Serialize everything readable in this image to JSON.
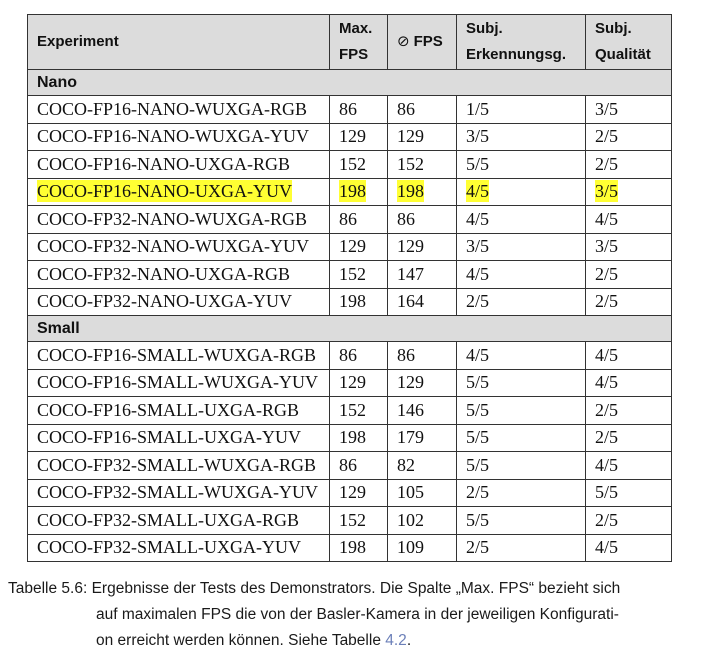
{
  "table": {
    "headers": {
      "experiment": "Experiment",
      "max_fps": [
        "Max.",
        "FPS"
      ],
      "avg_fps_symbol": "⊘",
      "avg_fps": "FPS",
      "subj_detect": [
        "Subj.",
        "Erkennungsg."
      ],
      "subj_quality": [
        "Subj.",
        "Qualität"
      ]
    },
    "groups": [
      {
        "label": "Nano",
        "rows": [
          {
            "experiment": "COCO-FP16-NANO-WUXGA-RGB",
            "max_fps": "86",
            "avg_fps": "86",
            "detect": "1/5",
            "quality": "3/5",
            "highlight": false
          },
          {
            "experiment": "COCO-FP16-NANO-WUXGA-YUV",
            "max_fps": "129",
            "avg_fps": "129",
            "detect": "3/5",
            "quality": "2/5",
            "highlight": false
          },
          {
            "experiment": "COCO-FP16-NANO-UXGA-RGB",
            "max_fps": "152",
            "avg_fps": "152",
            "detect": "5/5",
            "quality": "2/5",
            "highlight": false
          },
          {
            "experiment": "COCO-FP16-NANO-UXGA-YUV",
            "max_fps": "198",
            "avg_fps": "198",
            "detect": "4/5",
            "quality": "3/5",
            "highlight": true
          },
          {
            "experiment": "COCO-FP32-NANO-WUXGA-RGB",
            "max_fps": "86",
            "avg_fps": "86",
            "detect": "4/5",
            "quality": "4/5",
            "highlight": false
          },
          {
            "experiment": "COCO-FP32-NANO-WUXGA-YUV",
            "max_fps": "129",
            "avg_fps": "129",
            "detect": "3/5",
            "quality": "3/5",
            "highlight": false
          },
          {
            "experiment": "COCO-FP32-NANO-UXGA-RGB",
            "max_fps": "152",
            "avg_fps": "147",
            "detect": "4/5",
            "quality": "2/5",
            "highlight": false
          },
          {
            "experiment": "COCO-FP32-NANO-UXGA-YUV",
            "max_fps": "198",
            "avg_fps": "164",
            "detect": "2/5",
            "quality": "2/5",
            "highlight": false
          }
        ]
      },
      {
        "label": "Small",
        "rows": [
          {
            "experiment": "COCO-FP16-SMALL-WUXGA-RGB",
            "max_fps": "86",
            "avg_fps": "86",
            "detect": "4/5",
            "quality": "4/5",
            "highlight": false
          },
          {
            "experiment": "COCO-FP16-SMALL-WUXGA-YUV",
            "max_fps": "129",
            "avg_fps": "129",
            "detect": "5/5",
            "quality": "4/5",
            "highlight": false
          },
          {
            "experiment": "COCO-FP16-SMALL-UXGA-RGB",
            "max_fps": "152",
            "avg_fps": "146",
            "detect": "5/5",
            "quality": "2/5",
            "highlight": false
          },
          {
            "experiment": "COCO-FP16-SMALL-UXGA-YUV",
            "max_fps": "198",
            "avg_fps": "179",
            "detect": "5/5",
            "quality": "2/5",
            "highlight": false
          },
          {
            "experiment": "COCO-FP32-SMALL-WUXGA-RGB",
            "max_fps": "86",
            "avg_fps": "82",
            "detect": "5/5",
            "quality": "4/5",
            "highlight": false
          },
          {
            "experiment": "COCO-FP32-SMALL-WUXGA-YUV",
            "max_fps": "129",
            "avg_fps": "105",
            "detect": "2/5",
            "quality": "5/5",
            "highlight": false
          },
          {
            "experiment": "COCO-FP32-SMALL-UXGA-RGB",
            "max_fps": "152",
            "avg_fps": "102",
            "detect": "5/5",
            "quality": "2/5",
            "highlight": false
          },
          {
            "experiment": "COCO-FP32-SMALL-UXGA-YUV",
            "max_fps": "198",
            "avg_fps": "109",
            "detect": "2/5",
            "quality": "4/5",
            "highlight": false
          }
        ]
      }
    ]
  },
  "caption": {
    "label": "Tabelle 5.6:",
    "line1": "Ergebnisse der Tests des Demonstrators. Die Spalte „Max. FPS“ bezieht sich",
    "line2": "auf maximalen FPS die von der Basler-Kamera in der jeweiligen Konfigurati-",
    "line3_pre": "on erreicht werden können. Siehe Tabelle ",
    "line3_ref": "4.2",
    "line3_post": "."
  },
  "colors": {
    "highlight": "#ffff33",
    "header_bg": "#dcdcdc",
    "reference": "#6b7fb8"
  }
}
